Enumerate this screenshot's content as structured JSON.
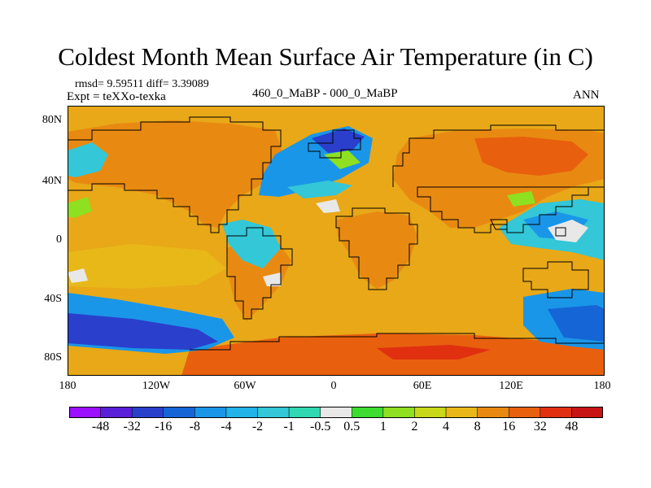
{
  "title": "Coldest Month Mean Surface Air Temperature (in C)",
  "stats": {
    "rmsd_label": "rmsd= 9.59511",
    "diff_label": "diff= 3.39089"
  },
  "experiment": "Expt = teXXo-texka",
  "center_label": "460_0_MaBP - 000_0_MaBP",
  "season": "ANN",
  "lat_ticks": [
    "80N",
    "40N",
    "0",
    "40S",
    "80S"
  ],
  "lon_ticks": [
    "180",
    "120W",
    "60W",
    "0",
    "60E",
    "120E",
    "180"
  ],
  "colorbar": {
    "labels": [
      "-48",
      "-32",
      "-16",
      "-8",
      "-4",
      "-2",
      "-1",
      "-0.5",
      "0.5",
      "1",
      "2",
      "4",
      "8",
      "16",
      "32",
      "48"
    ],
    "colors": [
      "#9a10ff",
      "#5a1fd8",
      "#2a3fcc",
      "#1565d6",
      "#1a96e8",
      "#22b3e8",
      "#33c7d8",
      "#2fd8b0",
      "#e8e8e8",
      "#3ddc30",
      "#8ee020",
      "#c8d818",
      "#e8b818",
      "#e88a12",
      "#e8600e",
      "#e03010",
      "#c81414"
    ]
  },
  "palette": {
    "background": "#e8a818",
    "ocean_warm": "#e8b818",
    "land_warm": "#e88a12",
    "hot": "#e8600e",
    "very_hot": "#e03010",
    "cool": "#33c7d8",
    "cold": "#1a96e8",
    "colder": "#1565d6",
    "coldest": "#2a3fcc",
    "neutral": "#e8e8e8",
    "green": "#8ee020",
    "coastline": "#000000"
  }
}
